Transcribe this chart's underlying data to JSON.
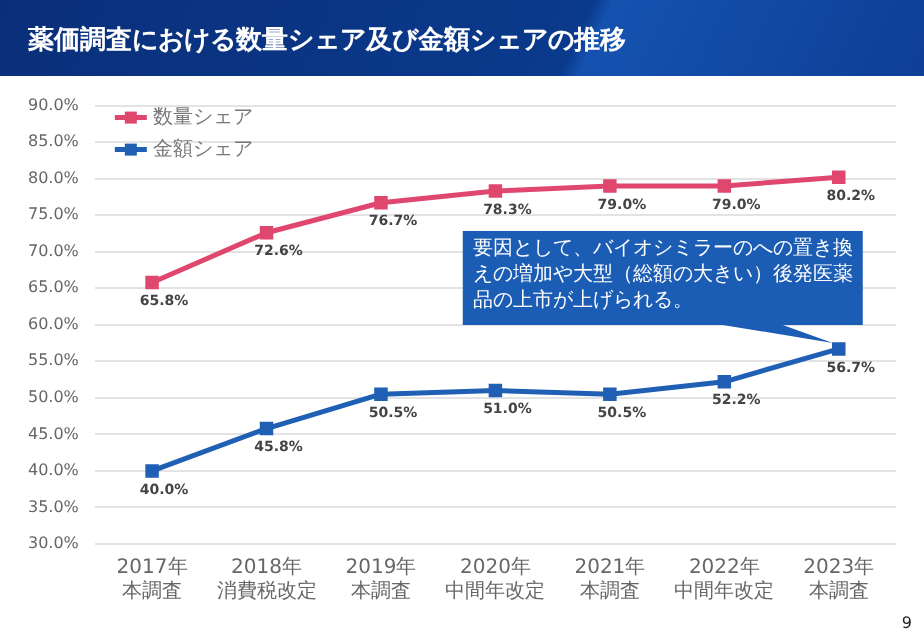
{
  "chart_data": {
    "type": "line",
    "title": "薬価調査における数量シェア及び金額シェアの推移",
    "categories": [
      "2017年本調査",
      "2018年消費税改定",
      "2019年本調査",
      "2020年中間年改定",
      "2021年本調査",
      "2022年中間年改定",
      "2023年本調査"
    ],
    "series": [
      {
        "name": "数量シェア",
        "color": "#e0476e",
        "values": [
          65.8,
          72.6,
          76.7,
          78.3,
          79.0,
          79.0,
          80.2
        ],
        "value_labels": [
          "65.8%",
          "72.6%",
          "76.7%",
          "78.3%",
          "79.0%",
          "79.0%",
          "80.2%"
        ]
      },
      {
        "name": "金額シェア",
        "color": "#1f5fb4",
        "values": [
          40.0,
          45.8,
          50.5,
          51.0,
          50.5,
          52.2,
          56.7
        ],
        "value_labels": [
          "40.0%",
          "45.8%",
          "50.5%",
          "51.0%",
          "50.5%",
          "52.2%",
          "56.7%"
        ]
      }
    ],
    "ylim": [
      30,
      90
    ],
    "yticks": [
      {
        "value": 30,
        "label": "30.0%"
      },
      {
        "value": 35,
        "label": "35.0%"
      },
      {
        "value": 40,
        "label": "40.0%"
      },
      {
        "value": 45,
        "label": "45.0%"
      },
      {
        "value": 50,
        "label": "50.0%"
      },
      {
        "value": 55,
        "label": "55.0%"
      },
      {
        "value": 60,
        "label": "60.0%"
      },
      {
        "value": 65,
        "label": "65.0%"
      },
      {
        "value": 70,
        "label": "70.0%"
      },
      {
        "value": 75,
        "label": "75.0%"
      },
      {
        "value": 80,
        "label": "80.0%"
      },
      {
        "value": 85,
        "label": "85.0%"
      },
      {
        "value": 90,
        "label": "90.0%"
      }
    ],
    "grid": "y",
    "legend": "top left",
    "marker": "square",
    "line_style": "solid",
    "annotations": [
      {
        "text": "要因として、バイオシミラーのへの置き換えの増加や大型（総額の大きい）後発医薬品の上市が上げられる。",
        "x": "2023年本調査",
        "y": 56.7
      },
      "9"
    ]
  }
}
